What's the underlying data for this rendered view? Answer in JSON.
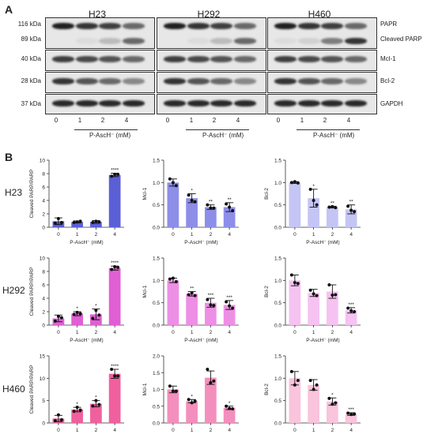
{
  "panel_a": {
    "letter": "A",
    "cell_lines": [
      "H23",
      "H292",
      "H460"
    ],
    "kda_labels": [
      "116 kDa",
      "89 kDa",
      "40 kDa",
      "28 kDa",
      "37 kDa"
    ],
    "proteins": [
      "PAPR",
      "Cleaved PARP",
      "Mcl-1",
      "Bcl-2",
      "GAPDH"
    ],
    "lanes": [
      "0",
      "1",
      "2",
      "4"
    ],
    "treatment_label": "P-AscH⁻ (mM)"
  },
  "panel_b": {
    "letter": "B",
    "row_labels": [
      "H23",
      "H292",
      "H460"
    ]
  },
  "chart_data": [
    {
      "type": "bar",
      "row": "H23",
      "column": 1,
      "color": "#5b5fd6",
      "categories": [
        "0",
        "1",
        "2",
        "4"
      ],
      "values": [
        0.9,
        0.8,
        0.8,
        7.8
      ],
      "errors": [
        0.5,
        0.15,
        0.2,
        0.25
      ],
      "points": [
        [
          0.6,
          1.3,
          0.7
        ],
        [
          0.7,
          0.8,
          0.9
        ],
        [
          0.7,
          0.9,
          0.8
        ],
        [
          7.6,
          7.9,
          7.9
        ]
      ],
      "sig": [
        "",
        "",
        "",
        "****"
      ],
      "ylabel": "Cleaved PARP/PARP",
      "xlabel": "P-AscH⁻ (mM)",
      "ylim": [
        0,
        10
      ],
      "yticks": [
        0,
        2,
        4,
        6,
        8,
        10
      ]
    },
    {
      "type": "bar",
      "row": "H23",
      "column": 2,
      "color": "#8d8ee8",
      "categories": [
        "0",
        "1",
        "2",
        "4"
      ],
      "values": [
        1.0,
        0.65,
        0.45,
        0.45
      ],
      "errors": [
        0.08,
        0.1,
        0.05,
        0.1
      ],
      "points": [
        [
          1.08,
          1.0,
          0.93
        ],
        [
          0.72,
          0.6,
          0.57
        ],
        [
          0.5,
          0.43,
          0.43
        ],
        [
          0.52,
          0.45,
          0.37
        ]
      ],
      "sig": [
        "",
        "*",
        "**",
        "**"
      ],
      "ylabel": "Mcl-1",
      "xlabel": "P-AscH⁻ (mM)",
      "ylim": [
        0,
        1.5
      ],
      "yticks": [
        0.0,
        0.5,
        1.0,
        1.5
      ]
    },
    {
      "type": "bar",
      "row": "H23",
      "column": 3,
      "color": "#c4c5f4",
      "categories": [
        "0",
        "1",
        "2",
        "4"
      ],
      "values": [
        1.0,
        0.65,
        0.45,
        0.4
      ],
      "errors": [
        0.02,
        0.2,
        0.02,
        0.1
      ],
      "points": [
        [
          1.0,
          1.02,
          0.99
        ],
        [
          0.85,
          0.6,
          0.5
        ],
        [
          0.45,
          0.46,
          0.44
        ],
        [
          0.47,
          0.38,
          0.35
        ]
      ],
      "sig": [
        "",
        "*",
        "**",
        "**"
      ],
      "ylabel": "Bcl-2",
      "xlabel": "P-AscH⁻ (mM)",
      "ylim": [
        0,
        1.5
      ],
      "yticks": [
        0.0,
        0.5,
        1.0,
        1.5
      ]
    },
    {
      "type": "bar",
      "row": "H292",
      "column": 1,
      "color": "#e05fd4",
      "categories": [
        "0",
        "1",
        "2",
        "4"
      ],
      "values": [
        1.0,
        1.7,
        1.6,
        8.5
      ],
      "errors": [
        0.5,
        0.3,
        0.8,
        0.3
      ],
      "points": [
        [
          0.6,
          1.3,
          1.1
        ],
        [
          1.6,
          1.9,
          1.7
        ],
        [
          1.0,
          2.2,
          1.5
        ],
        [
          8.3,
          8.7,
          8.6
        ]
      ],
      "sig": [
        "",
        "*",
        "*",
        "****"
      ],
      "ylabel": "Cleaved PARP/PARP",
      "xlabel": "P-AscH⁻ (mM)",
      "ylim": [
        0,
        10
      ],
      "yticks": [
        0,
        2,
        4,
        6,
        8,
        10
      ]
    },
    {
      "type": "bar",
      "row": "H292",
      "column": 2,
      "color": "#ee8fe6",
      "categories": [
        "0",
        "1",
        "2",
        "4"
      ],
      "values": [
        1.0,
        0.7,
        0.5,
        0.45
      ],
      "errors": [
        0.05,
        0.05,
        0.1,
        0.1
      ],
      "points": [
        [
          1.03,
          1.05,
          0.97
        ],
        [
          0.68,
          0.72,
          0.66
        ],
        [
          0.57,
          0.45,
          0.44
        ],
        [
          0.52,
          0.43,
          0.38
        ]
      ],
      "sig": [
        "",
        "**",
        "***",
        "***"
      ],
      "ylabel": "Mcl-1",
      "xlabel": "P-AscH⁻ (mM)",
      "ylim": [
        0,
        1.5
      ],
      "yticks": [
        0.0,
        0.5,
        1.0,
        1.5
      ]
    },
    {
      "type": "bar",
      "row": "H292",
      "column": 3,
      "color": "#f6c2f1",
      "categories": [
        "0",
        "1",
        "2",
        "4"
      ],
      "values": [
        1.0,
        0.72,
        0.75,
        0.33
      ],
      "errors": [
        0.12,
        0.08,
        0.15,
        0.06
      ],
      "points": [
        [
          1.12,
          0.95,
          0.93
        ],
        [
          0.78,
          0.7,
          0.66
        ],
        [
          0.9,
          0.67,
          0.68
        ],
        [
          0.38,
          0.32,
          0.3
        ]
      ],
      "sig": [
        "",
        "",
        "",
        "***"
      ],
      "ylabel": "Bcl-2",
      "xlabel": "P-AscH⁻ (mM)",
      "ylim": [
        0,
        1.5
      ],
      "yticks": [
        0.0,
        0.5,
        1.0,
        1.5
      ]
    },
    {
      "type": "bar",
      "row": "H460",
      "column": 1,
      "color": "#f0609e",
      "categories": [
        "0",
        "1",
        "2",
        "4"
      ],
      "values": [
        1.0,
        3.0,
        4.3,
        11.0
      ],
      "errors": [
        0.7,
        0.5,
        0.7,
        1.0
      ],
      "points": [
        [
          0.5,
          1.8,
          0.7
        ],
        [
          2.6,
          3.5,
          2.9
        ],
        [
          3.8,
          5.0,
          4.1
        ],
        [
          12.0,
          10.5,
          10.5
        ]
      ],
      "sig": [
        "",
        "*",
        "*",
        "****"
      ],
      "ylabel": "Cleaved PARP/PARP",
      "xlabel": "P-AscH⁻ (mM)",
      "ylim": [
        0,
        15
      ],
      "yticks": [
        0,
        5,
        10,
        15
      ]
    },
    {
      "type": "bar",
      "row": "H460",
      "column": 2,
      "color": "#f48fbd",
      "categories": [
        "0",
        "1",
        "2",
        "4"
      ],
      "values": [
        1.0,
        0.65,
        1.35,
        0.45
      ],
      "errors": [
        0.1,
        0.05,
        0.2,
        0.05
      ],
      "points": [
        [
          1.1,
          0.95,
          0.95
        ],
        [
          0.7,
          0.6,
          0.65
        ],
        [
          1.6,
          1.2,
          1.25
        ],
        [
          0.5,
          0.43,
          0.42
        ]
      ],
      "sig": [
        "",
        "*",
        "",
        "*"
      ],
      "ylabel": "Mcl-1",
      "xlabel": "P-AscH⁻ (mM)",
      "ylim": [
        0,
        2.0
      ],
      "yticks": [
        0.0,
        0.5,
        1.0,
        1.5,
        2.0
      ]
    },
    {
      "type": "bar",
      "row": "H460",
      "column": 3,
      "color": "#f9c4dc",
      "categories": [
        "0",
        "1",
        "2",
        "4"
      ],
      "values": [
        1.0,
        0.85,
        0.48,
        0.2
      ],
      "errors": [
        0.15,
        0.12,
        0.08,
        0.03
      ],
      "points": [
        [
          1.15,
          0.85,
          0.95
        ],
        [
          0.95,
          0.75,
          0.85
        ],
        [
          0.55,
          0.42,
          0.45
        ],
        [
          0.22,
          0.19,
          0.2
        ]
      ],
      "sig": [
        "",
        "",
        "*",
        "***"
      ],
      "ylabel": "Bcl-2",
      "xlabel": "P-AscH⁻ (mM)",
      "ylim": [
        0,
        1.5
      ],
      "yticks": [
        0.0,
        0.5,
        1.0,
        1.5
      ]
    }
  ]
}
